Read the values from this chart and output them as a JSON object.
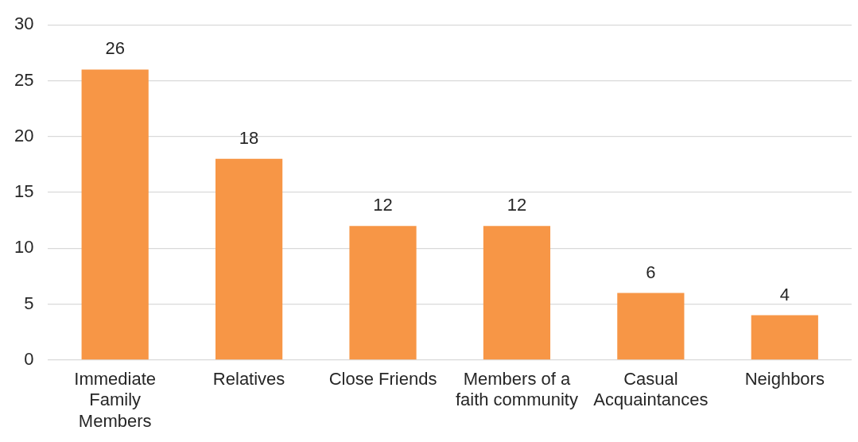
{
  "chart_data": {
    "type": "bar",
    "categories": [
      "Immediate Family Members",
      "Relatives",
      "Close Friends",
      "Members of a faith community",
      "Casual Acquaintances",
      "Neighbors"
    ],
    "values": [
      26,
      18,
      12,
      12,
      6,
      4
    ],
    "color": "#f79646",
    "ylim": [
      0,
      30
    ],
    "yticks": [
      0,
      5,
      10,
      15,
      20,
      25,
      30
    ],
    "grid": "y",
    "data_labels": true,
    "legend": false
  }
}
